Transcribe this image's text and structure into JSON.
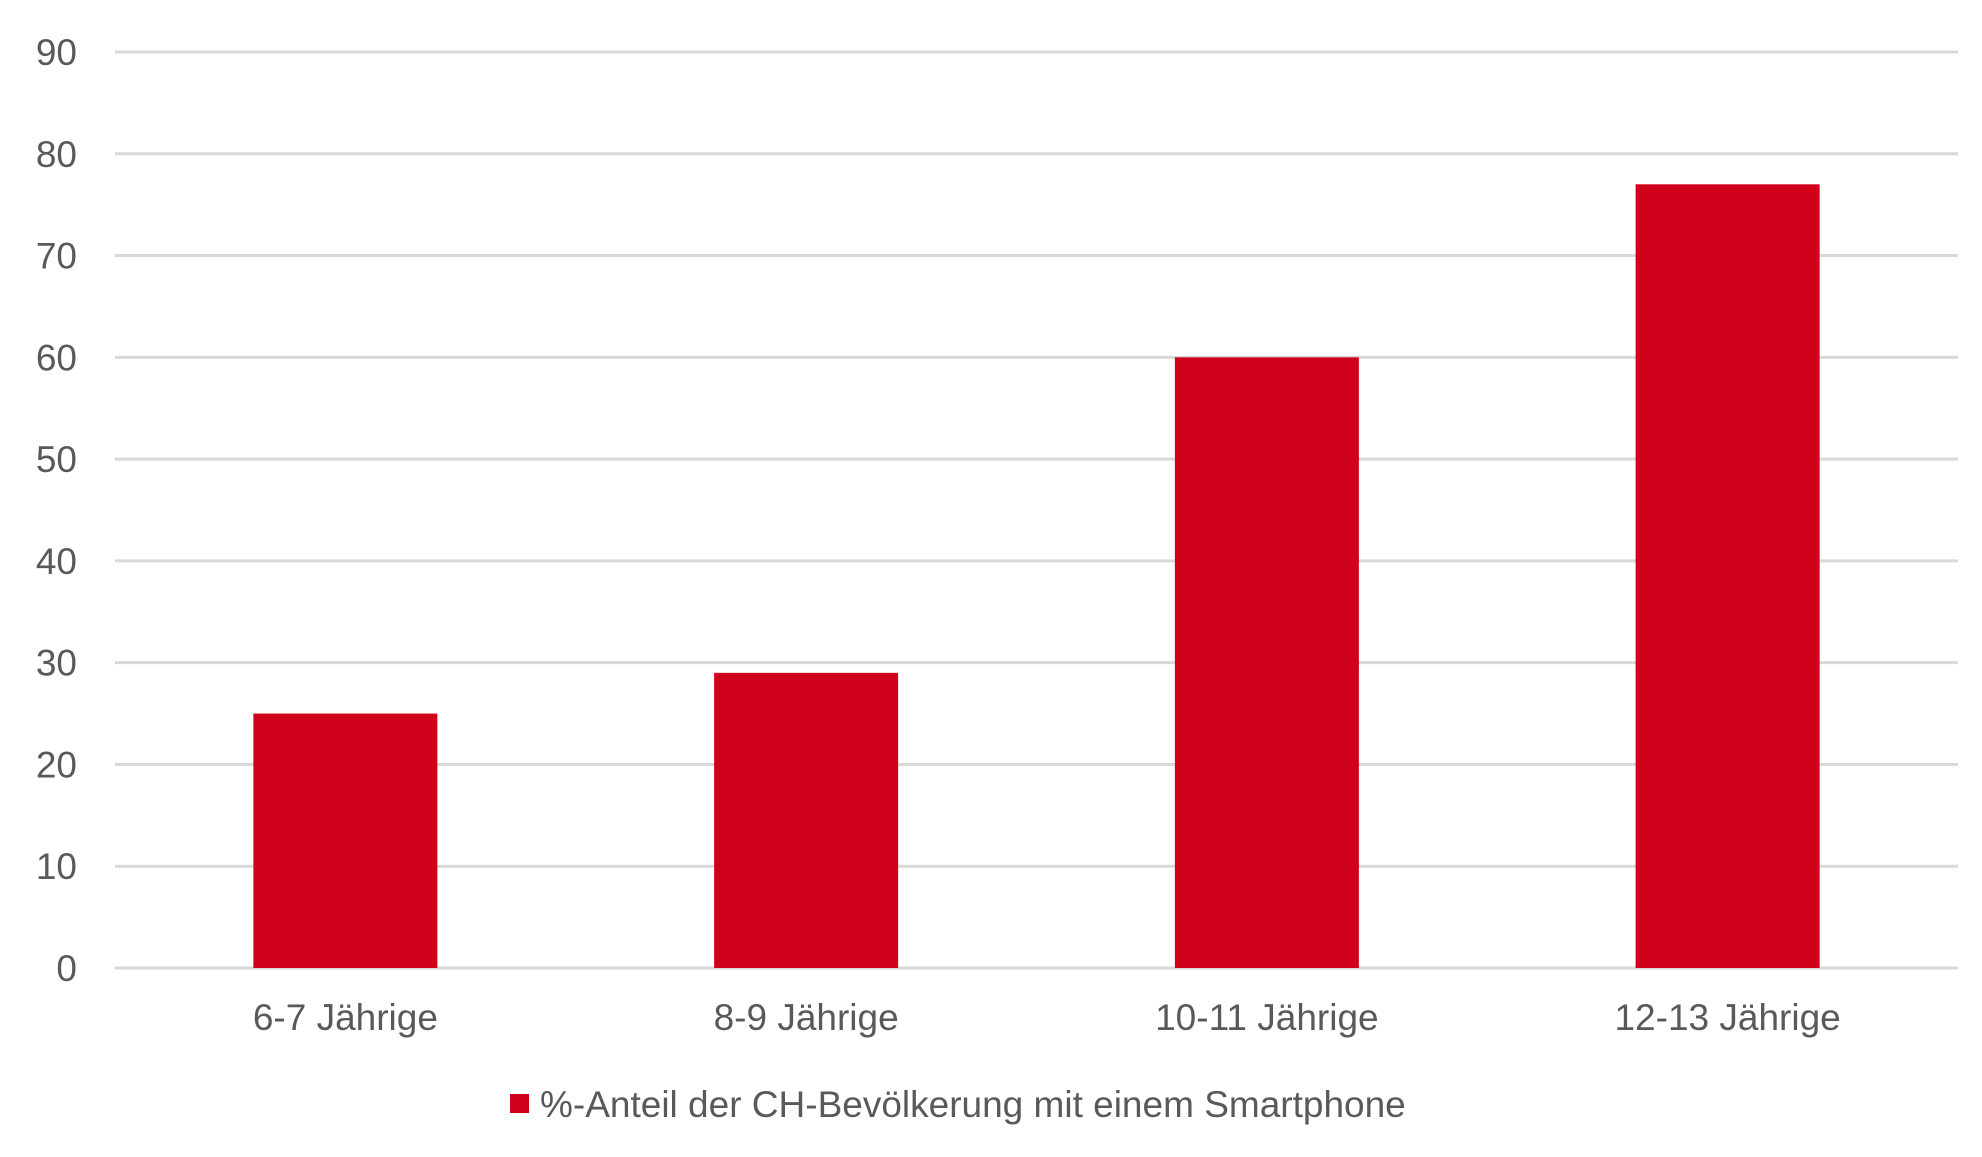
{
  "chart_data": {
    "type": "bar",
    "categories": [
      "6-7 Jährige",
      "8-9 Jährige",
      "10-11 Jährige",
      "12-13 Jährige"
    ],
    "series": [
      {
        "name": "%-Anteil der CH-Bevölkerung mit einem Smartphone",
        "values": [
          25,
          29,
          60,
          77
        ],
        "color": "#d0021b"
      }
    ],
    "title": "",
    "xlabel": "",
    "ylabel": "",
    "ylim": [
      0,
      90
    ],
    "yticks": [
      0,
      10,
      20,
      30,
      40,
      50,
      60,
      70,
      80,
      90
    ],
    "grid": true,
    "gridColor": "#d9d9d9",
    "legend": "bottom-center"
  }
}
